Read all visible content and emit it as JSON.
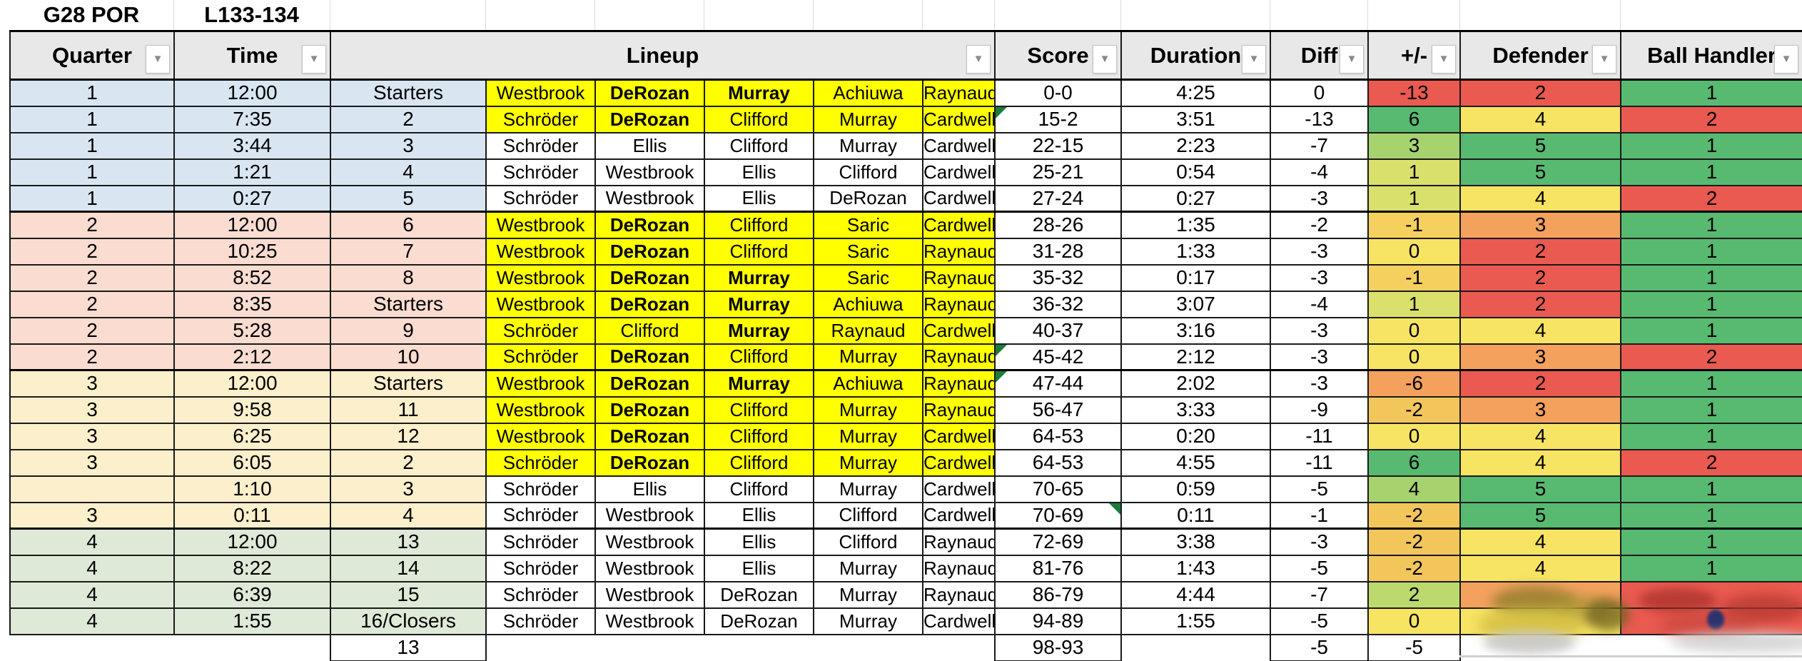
{
  "sheet": {
    "game_label": "G28 POR",
    "result_label": "L133-134"
  },
  "icons": {
    "filter": "▼",
    "note_marker": "green-corner-triangle"
  },
  "colors": {
    "highlight_yellow": "#ffff00",
    "green": "#57ba70",
    "light_green": "#a7d36e",
    "yellow_green": "#d9e06c",
    "yellow": "#f8e463",
    "gold": "#f3c65c",
    "orange": "#f4a15e",
    "red": "#ea5a50",
    "q1_tint": "#d9e6f2",
    "q2_tint": "#fbdcd0",
    "q3_tint": "#fcefcb",
    "q4_tint": "#dfe9d8"
  },
  "header": {
    "columns": [
      {
        "key": "quarter",
        "label": "Quarter",
        "span": 1
      },
      {
        "key": "time",
        "label": "Time",
        "span": 1
      },
      {
        "key": "lineup",
        "label": "Lineup",
        "span": 6
      },
      {
        "key": "score",
        "label": "Score",
        "span": 1
      },
      {
        "key": "duration",
        "label": "Duration",
        "span": 1
      },
      {
        "key": "diff",
        "label": "Diff",
        "span": 1
      },
      {
        "key": "plus-minus",
        "label": "+/-",
        "span": 1
      },
      {
        "key": "defender",
        "label": "Defender",
        "span": 1
      },
      {
        "key": "ball-handler",
        "label": "Ball Handler",
        "span": 1
      }
    ]
  },
  "rows": [
    {
      "quarter": "1",
      "q": 1,
      "time": "12:00",
      "num": "Starters",
      "players": [
        {
          "n": "Westbrook",
          "y": 1
        },
        {
          "n": "DeRozan",
          "y": 1,
          "b": 1
        },
        {
          "n": "Murray",
          "y": 1,
          "b": 1
        },
        {
          "n": "Achiuwa",
          "y": 1
        },
        {
          "n": "Raynaud",
          "y": 1
        }
      ],
      "score": "0-0",
      "duration": "4:25",
      "diff": "0",
      "pm": {
        "v": "-13",
        "c": "r"
      },
      "def": {
        "v": "2",
        "c": "r"
      },
      "bh": {
        "v": "1",
        "c": "g"
      }
    },
    {
      "quarter": "1",
      "q": 1,
      "time": "7:35",
      "num": "2",
      "players": [
        {
          "n": "Schröder",
          "y": 1
        },
        {
          "n": "DeRozan",
          "y": 1,
          "b": 1
        },
        {
          "n": "Clifford",
          "y": 1
        },
        {
          "n": "Murray",
          "y": 1
        },
        {
          "n": "Cardwell",
          "y": 1
        }
      ],
      "score": "15-2",
      "flag": "tl",
      "duration": "3:51",
      "diff": "-13",
      "pm": {
        "v": "6",
        "c": "g"
      },
      "def": {
        "v": "4",
        "c": "y"
      },
      "bh": {
        "v": "2",
        "c": "r"
      }
    },
    {
      "quarter": "1",
      "q": 1,
      "time": "3:44",
      "num": "3",
      "players": [
        {
          "n": "Schröder"
        },
        {
          "n": "Ellis"
        },
        {
          "n": "Clifford"
        },
        {
          "n": "Murray"
        },
        {
          "n": "Cardwell"
        }
      ],
      "score": "22-15",
      "duration": "2:23",
      "diff": "-7",
      "pm": {
        "v": "3",
        "c": "lg"
      },
      "def": {
        "v": "5",
        "c": "g"
      },
      "bh": {
        "v": "1",
        "c": "g"
      }
    },
    {
      "quarter": "1",
      "q": 1,
      "time": "1:21",
      "num": "4",
      "players": [
        {
          "n": "Schröder"
        },
        {
          "n": "Westbrook"
        },
        {
          "n": "Ellis"
        },
        {
          "n": "Clifford"
        },
        {
          "n": "Cardwell"
        }
      ],
      "score": "25-21",
      "duration": "0:54",
      "diff": "-4",
      "pm": {
        "v": "1",
        "c": "yg"
      },
      "def": {
        "v": "5",
        "c": "g"
      },
      "bh": {
        "v": "1",
        "c": "g"
      }
    },
    {
      "quarter": "1",
      "q": 1,
      "time": "0:27",
      "num": "5",
      "players": [
        {
          "n": "Schröder"
        },
        {
          "n": "Westbrook"
        },
        {
          "n": "Ellis"
        },
        {
          "n": "DeRozan"
        },
        {
          "n": "Cardwell"
        }
      ],
      "score": "27-24",
      "duration": "0:27",
      "diff": "-3",
      "pm": {
        "v": "1",
        "c": "yg"
      },
      "def": {
        "v": "4",
        "c": "y"
      },
      "bh": {
        "v": "2",
        "c": "r"
      }
    },
    {
      "quarter": "2",
      "q": 2,
      "time": "12:00",
      "num": "6",
      "gs": 1,
      "players": [
        {
          "n": "Westbrook",
          "y": 1
        },
        {
          "n": "DeRozan",
          "y": 1,
          "b": 1
        },
        {
          "n": "Clifford",
          "y": 1
        },
        {
          "n": "Saric",
          "y": 1
        },
        {
          "n": "Cardwell",
          "y": 1
        }
      ],
      "score": "28-26",
      "duration": "1:35",
      "diff": "-2",
      "pm": {
        "v": "-1",
        "c": "g1"
      },
      "def": {
        "v": "3",
        "c": "o"
      },
      "bh": {
        "v": "1",
        "c": "g"
      }
    },
    {
      "quarter": "2",
      "q": 2,
      "time": "10:25",
      "num": "7",
      "players": [
        {
          "n": "Westbrook",
          "y": 1
        },
        {
          "n": "DeRozan",
          "y": 1,
          "b": 1
        },
        {
          "n": "Clifford",
          "y": 1
        },
        {
          "n": "Saric",
          "y": 1
        },
        {
          "n": "Raynaud",
          "y": 1
        }
      ],
      "score": "31-28",
      "duration": "1:33",
      "diff": "-3",
      "pm": {
        "v": "0",
        "c": "y"
      },
      "def": {
        "v": "2",
        "c": "r"
      },
      "bh": {
        "v": "1",
        "c": "g"
      }
    },
    {
      "quarter": "2",
      "q": 2,
      "time": "8:52",
      "num": "8",
      "players": [
        {
          "n": "Westbrook",
          "y": 1
        },
        {
          "n": "DeRozan",
          "y": 1,
          "b": 1
        },
        {
          "n": "Murray",
          "y": 1,
          "b": 1
        },
        {
          "n": "Saric",
          "y": 1
        },
        {
          "n": "Raynaud",
          "y": 1
        }
      ],
      "score": "35-32",
      "duration": "0:17",
      "diff": "-3",
      "pm": {
        "v": "-1",
        "c": "g1"
      },
      "def": {
        "v": "2",
        "c": "r"
      },
      "bh": {
        "v": "1",
        "c": "g"
      }
    },
    {
      "quarter": "2",
      "q": 2,
      "time": "8:35",
      "num": "Starters",
      "players": [
        {
          "n": "Westbrook",
          "y": 1
        },
        {
          "n": "DeRozan",
          "y": 1,
          "b": 1
        },
        {
          "n": "Murray",
          "y": 1,
          "b": 1
        },
        {
          "n": "Achiuwa",
          "y": 1
        },
        {
          "n": "Raynaud",
          "y": 1
        }
      ],
      "score": "36-32",
      "duration": "3:07",
      "diff": "-4",
      "pm": {
        "v": "1",
        "c": "yg"
      },
      "def": {
        "v": "2",
        "c": "r"
      },
      "bh": {
        "v": "1",
        "c": "g"
      }
    },
    {
      "quarter": "2",
      "q": 2,
      "time": "5:28",
      "num": "9",
      "players": [
        {
          "n": "Schröder",
          "y": 1
        },
        {
          "n": "Clifford",
          "y": 1
        },
        {
          "n": "Murray",
          "y": 1,
          "b": 1
        },
        {
          "n": "Raynaud",
          "y": 1
        },
        {
          "n": "Cardwell",
          "y": 1
        }
      ],
      "score": "40-37",
      "duration": "3:16",
      "diff": "-3",
      "pm": {
        "v": "0",
        "c": "y"
      },
      "def": {
        "v": "4",
        "c": "y"
      },
      "bh": {
        "v": "1",
        "c": "g"
      }
    },
    {
      "quarter": "2",
      "q": 2,
      "time": "2:12",
      "num": "10",
      "players": [
        {
          "n": "Schröder",
          "y": 1
        },
        {
          "n": "DeRozan",
          "y": 1,
          "b": 1
        },
        {
          "n": "Clifford",
          "y": 1
        },
        {
          "n": "Murray",
          "y": 1
        },
        {
          "n": "Raynaud",
          "y": 1
        }
      ],
      "score": "45-42",
      "flag": "tl",
      "duration": "2:12",
      "diff": "-3",
      "pm": {
        "v": "0",
        "c": "y"
      },
      "def": {
        "v": "3",
        "c": "o"
      },
      "bh": {
        "v": "2",
        "c": "r"
      }
    },
    {
      "quarter": "3",
      "q": 3,
      "time": "12:00",
      "num": "Starters",
      "gs": 1,
      "players": [
        {
          "n": "Westbrook",
          "y": 1
        },
        {
          "n": "DeRozan",
          "y": 1,
          "b": 1
        },
        {
          "n": "Murray",
          "y": 1,
          "b": 1
        },
        {
          "n": "Achiuwa",
          "y": 1
        },
        {
          "n": "Raynaud",
          "y": 1
        }
      ],
      "score": "47-44",
      "flag": "tl",
      "duration": "2:02",
      "diff": "-3",
      "pm": {
        "v": "-6",
        "c": "o"
      },
      "def": {
        "v": "2",
        "c": "r"
      },
      "bh": {
        "v": "1",
        "c": "g"
      }
    },
    {
      "quarter": "3",
      "q": 3,
      "time": "9:58",
      "num": "11",
      "players": [
        {
          "n": "Westbrook",
          "y": 1
        },
        {
          "n": "DeRozan",
          "y": 1,
          "b": 1
        },
        {
          "n": "Clifford",
          "y": 1
        },
        {
          "n": "Murray",
          "y": 1
        },
        {
          "n": "Raynaud",
          "y": 1
        }
      ],
      "score": "56-47",
      "duration": "3:33",
      "diff": "-9",
      "pm": {
        "v": "-2",
        "c": "g2"
      },
      "def": {
        "v": "3",
        "c": "o"
      },
      "bh": {
        "v": "1",
        "c": "g"
      }
    },
    {
      "quarter": "3",
      "q": 3,
      "time": "6:25",
      "num": "12",
      "players": [
        {
          "n": "Westbrook",
          "y": 1
        },
        {
          "n": "DeRozan",
          "y": 1,
          "b": 1
        },
        {
          "n": "Clifford",
          "y": 1
        },
        {
          "n": "Murray",
          "y": 1
        },
        {
          "n": "Cardwell",
          "y": 1
        }
      ],
      "score": "64-53",
      "duration": "0:20",
      "diff": "-11",
      "pm": {
        "v": "0",
        "c": "y"
      },
      "def": {
        "v": "4",
        "c": "y"
      },
      "bh": {
        "v": "1",
        "c": "g"
      }
    },
    {
      "quarter": "3",
      "q": 3,
      "time": "6:05",
      "num": "2",
      "players": [
        {
          "n": "Schröder",
          "y": 1
        },
        {
          "n": "DeRozan",
          "y": 1,
          "b": 1
        },
        {
          "n": "Clifford",
          "y": 1
        },
        {
          "n": "Murray",
          "y": 1
        },
        {
          "n": "Cardwell",
          "y": 1
        }
      ],
      "score": "64-53",
      "duration": "4:55",
      "diff": "-11",
      "pm": {
        "v": "6",
        "c": "g"
      },
      "def": {
        "v": "4",
        "c": "y"
      },
      "bh": {
        "v": "2",
        "c": "r"
      }
    },
    {
      "quarter": "",
      "q": 3,
      "time": "1:10",
      "num": "3",
      "players": [
        {
          "n": "Schröder"
        },
        {
          "n": "Ellis"
        },
        {
          "n": "Clifford"
        },
        {
          "n": "Murray"
        },
        {
          "n": "Cardwell"
        }
      ],
      "score": "70-65",
      "duration": "0:59",
      "diff": "-5",
      "pm": {
        "v": "4",
        "c": "lg"
      },
      "def": {
        "v": "5",
        "c": "g"
      },
      "bh": {
        "v": "1",
        "c": "g"
      }
    },
    {
      "quarter": "3",
      "q": 3,
      "time": "0:11",
      "num": "4",
      "players": [
        {
          "n": "Schröder"
        },
        {
          "n": "Westbrook"
        },
        {
          "n": "Ellis"
        },
        {
          "n": "Clifford"
        },
        {
          "n": "Cardwell"
        }
      ],
      "score": "70-69",
      "flag": "tr",
      "duration": "0:11",
      "diff": "-1",
      "pm": {
        "v": "-2",
        "c": "g2"
      },
      "def": {
        "v": "5",
        "c": "g"
      },
      "bh": {
        "v": "1",
        "c": "g"
      }
    },
    {
      "quarter": "4",
      "q": 4,
      "time": "12:00",
      "num": "13",
      "gs": 1,
      "players": [
        {
          "n": "Schröder"
        },
        {
          "n": "Westbrook"
        },
        {
          "n": "Ellis"
        },
        {
          "n": "Clifford"
        },
        {
          "n": "Raynaud"
        }
      ],
      "score": "72-69",
      "duration": "3:38",
      "diff": "-3",
      "pm": {
        "v": "-2",
        "c": "g2"
      },
      "def": {
        "v": "4",
        "c": "y"
      },
      "bh": {
        "v": "1",
        "c": "g"
      }
    },
    {
      "quarter": "4",
      "q": 4,
      "time": "8:22",
      "num": "14",
      "players": [
        {
          "n": "Schröder"
        },
        {
          "n": "Westbrook"
        },
        {
          "n": "Ellis"
        },
        {
          "n": "Murray"
        },
        {
          "n": "Raynaud"
        }
      ],
      "score": "81-76",
      "duration": "1:43",
      "diff": "-5",
      "pm": {
        "v": "-2",
        "c": "g2"
      },
      "def": {
        "v": "4",
        "c": "y"
      },
      "bh": {
        "v": "1",
        "c": "g"
      }
    },
    {
      "quarter": "4",
      "q": 4,
      "time": "6:39",
      "num": "15",
      "players": [
        {
          "n": "Schröder"
        },
        {
          "n": "Westbrook"
        },
        {
          "n": "DeRozan"
        },
        {
          "n": "Murray"
        },
        {
          "n": "Raynaud"
        }
      ],
      "score": "86-79",
      "duration": "4:44",
      "diff": "-7",
      "pm": {
        "v": "2",
        "c": "lg2"
      },
      "def": {
        "v": "",
        "c": "o",
        "red": 1
      },
      "bh": {
        "v": "",
        "c": "r",
        "red": 1
      }
    },
    {
      "quarter": "4",
      "q": 4,
      "time": "1:55",
      "num": "16/Closers",
      "players": [
        {
          "n": "Schröder"
        },
        {
          "n": "Westbrook"
        },
        {
          "n": "DeRozan"
        },
        {
          "n": "Murray"
        },
        {
          "n": "Cardwell"
        }
      ],
      "score": "94-89",
      "duration": "1:55",
      "diff": "-5",
      "pm": {
        "v": "0",
        "c": "y"
      },
      "def": {
        "v": "",
        "c": "y",
        "red": 1
      },
      "bh": {
        "v": "",
        "c": "r",
        "red": 1
      }
    }
  ],
  "totals": {
    "lineup_num": "13",
    "score": "98-93",
    "diff": "-5",
    "plus_minus": "-5"
  }
}
